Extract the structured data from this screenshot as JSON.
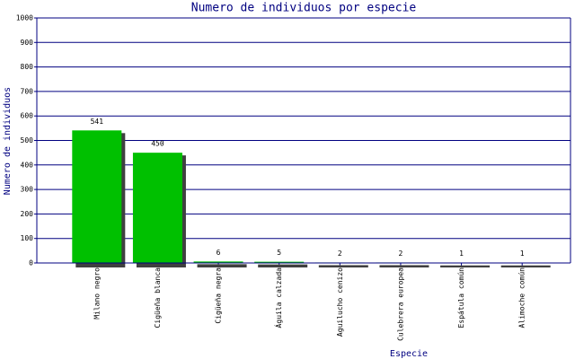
{
  "chart_data": {
    "type": "bar",
    "title": "Numero de individuos por especie",
    "x_label": "Especie",
    "y_label": "Numero de individuos",
    "categories": [
      "Milano negro",
      "Cigüeña blanca",
      "Cigüeña negra",
      "Águila calzada",
      "Aguilucho cenizo",
      "Culebrera europea",
      "Espátula común",
      "Alimoche común"
    ],
    "values": [
      541,
      450,
      6,
      5,
      2,
      2,
      1,
      1
    ],
    "color": "#00c000",
    "ylim": [
      0,
      1000
    ],
    "yticks": [
      0,
      100,
      200,
      300,
      400,
      500,
      600,
      700,
      800,
      900,
      1000
    ],
    "grid": true
  }
}
